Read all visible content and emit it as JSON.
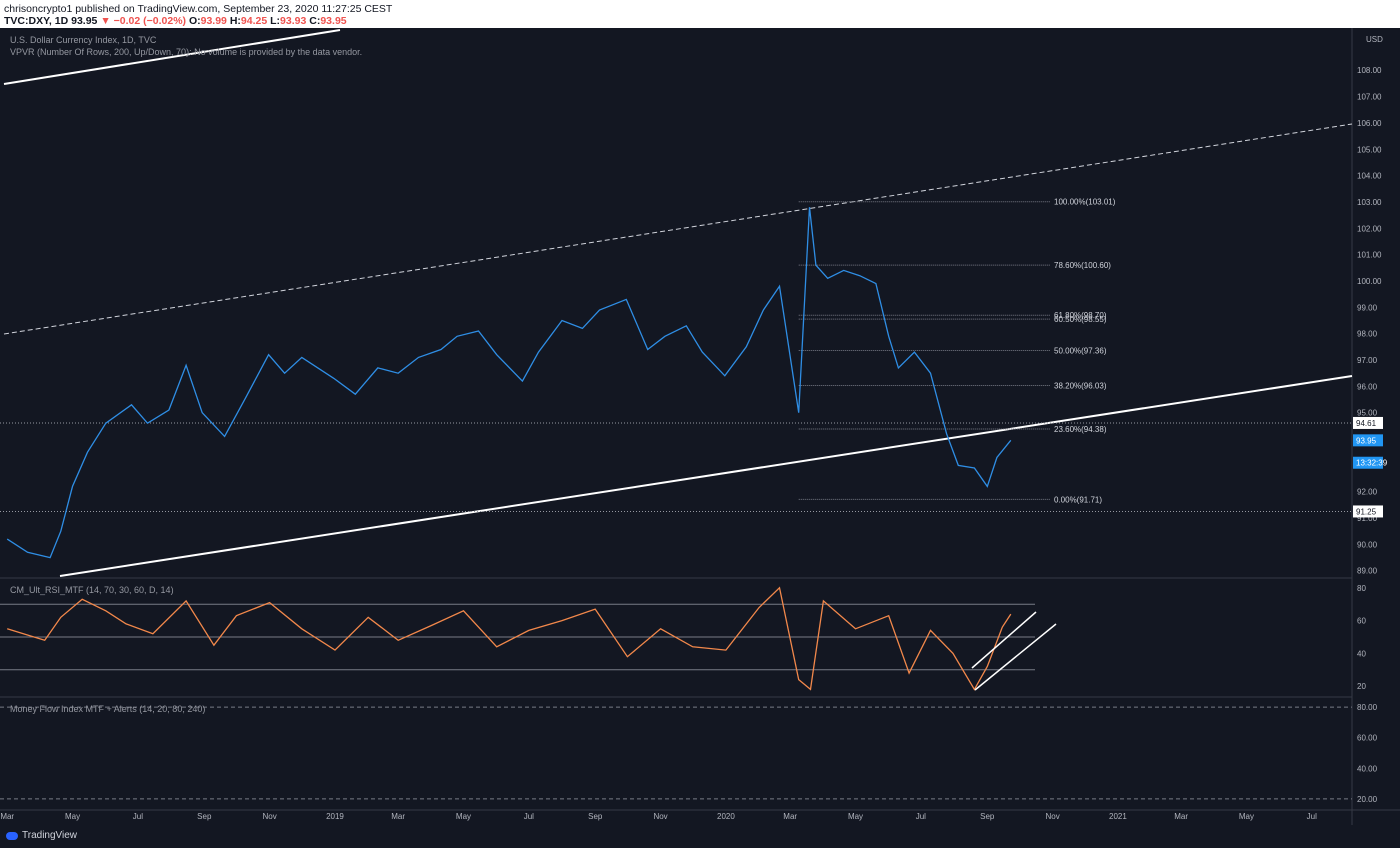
{
  "header": {
    "line1": "chrisoncrypto1 published on TradingView.com, September 23, 2020 11:27:25 CEST",
    "symbol": "TVC:DXY, 1D",
    "last": "93.95",
    "change": "−0.02 (−0.02%)",
    "o_label": "O:",
    "o": "93.99",
    "h_label": "H:",
    "h": "94.25",
    "l_label": "L:",
    "l": "93.93",
    "c_label": "C:",
    "c": "93.95"
  },
  "legend": {
    "title": "U.S. Dollar Currency Index, 1D, TVC",
    "vpvr": "VPVR (Number Of Rows, 200, Up/Down, 70): No volume is provided by the data vendor.",
    "rsi": "CM_Ult_RSI_MTF (14, 70, 30, 60, D, 14)",
    "mfi": "Money Flow Index MTF + Alerts (14, 20, 80, 240)"
  },
  "footer": {
    "brand": "TradingView"
  },
  "colors": {
    "background": "#131722",
    "price_line": "#2f8ee5",
    "rsi_line": "#f2884b",
    "trend_line": "#ffffff",
    "axis_text": "#b2b5be",
    "price_label_bg": "#2196f3"
  },
  "chart_data": [
    {
      "type": "line",
      "title": "U.S. Dollar Currency Index, 1D, TVC",
      "currency": "USD",
      "x_ticks": [
        "Mar",
        "May",
        "Jul",
        "Sep",
        "Nov",
        "2019",
        "Mar",
        "May",
        "Jul",
        "Sep",
        "Nov",
        "2020",
        "Mar",
        "May",
        "Jul",
        "Sep",
        "Nov",
        "2021",
        "Mar",
        "May",
        "Jul"
      ],
      "y_ticks": [
        "89.00",
        "90.00",
        "91.00",
        "92.00",
        "93.00",
        "94.00",
        "95.00",
        "96.00",
        "97.00",
        "98.00",
        "99.00",
        "100.00",
        "101.00",
        "102.00",
        "103.00",
        "104.00",
        "105.00",
        "106.00",
        "107.00",
        "108.00"
      ],
      "ylim": [
        88.8,
        109.3
      ],
      "series": [
        {
          "x": [
            "2018-03-01",
            "2018-03-20",
            "2018-04-10",
            "2018-04-20",
            "2018-05-01",
            "2018-05-15",
            "2018-06-01",
            "2018-06-25",
            "2018-07-10",
            "2018-07-30",
            "2018-08-15",
            "2018-08-30",
            "2018-09-20",
            "2018-10-10",
            "2018-10-31",
            "2018-11-15",
            "2018-12-01",
            "2018-12-31",
            "2019-01-20",
            "2019-02-10",
            "2019-03-01",
            "2019-03-20",
            "2019-04-10",
            "2019-04-25",
            "2019-05-15",
            "2019-06-01",
            "2019-06-25",
            "2019-07-10",
            "2019-08-01",
            "2019-08-20",
            "2019-09-05",
            "2019-09-30",
            "2019-10-20",
            "2019-11-05",
            "2019-11-25",
            "2019-12-10",
            "2019-12-31",
            "2020-01-20",
            "2020-02-05",
            "2020-02-20",
            "2020-03-09",
            "2020-03-19",
            "2020-03-25",
            "2020-04-05",
            "2020-04-20",
            "2020-05-05",
            "2020-05-20",
            "2020-06-01",
            "2020-06-10",
            "2020-06-25",
            "2020-07-10",
            "2020-07-25",
            "2020-08-05",
            "2020-08-20",
            "2020-09-01",
            "2020-09-10",
            "2020-09-23"
          ],
          "values": [
            90.2,
            89.7,
            89.5,
            90.5,
            92.2,
            93.5,
            94.6,
            95.3,
            94.6,
            95.1,
            96.8,
            95.0,
            94.1,
            95.6,
            97.2,
            96.5,
            97.1,
            96.3,
            95.7,
            96.7,
            96.5,
            97.1,
            97.4,
            97.9,
            98.1,
            97.2,
            96.2,
            97.3,
            98.5,
            98.2,
            98.9,
            99.3,
            97.4,
            97.9,
            98.3,
            97.3,
            96.4,
            97.5,
            98.9,
            99.8,
            95.0,
            102.8,
            100.6,
            100.1,
            100.4,
            100.2,
            99.9,
            97.9,
            96.7,
            97.3,
            96.5,
            94.2,
            93.0,
            92.9,
            92.2,
            93.3,
            93.95
          ]
        }
      ],
      "fibonacci": [
        {
          "label": "100.00%(103.01)",
          "value": 103.01
        },
        {
          "label": "78.60%(100.60)",
          "value": 100.6
        },
        {
          "label": "61.80%(98.70)",
          "value": 98.7
        },
        {
          "label": "60.50%(98.55)",
          "value": 98.55
        },
        {
          "label": "50.00%(97.36)",
          "value": 97.36
        },
        {
          "label": "38.20%(96.03)",
          "value": 96.03
        },
        {
          "label": "23.60%(94.38)",
          "value": 94.38
        },
        {
          "label": "0.00%(91.71)",
          "value": 91.71
        }
      ],
      "horizontal_lines": [
        94.61,
        91.25
      ],
      "price_labels": [
        {
          "text": "94.61",
          "value": 94.61
        },
        {
          "text": "93.95",
          "value": 93.95,
          "highlight": true
        },
        {
          "text": "13:32:39",
          "value": 93.1,
          "highlight": true
        },
        {
          "text": "91.25",
          "value": 91.25
        }
      ],
      "grid": false
    },
    {
      "type": "line",
      "title": "CM_Ult_RSI_MTF (14, 70, 30, 60, D, 14)",
      "y_ticks": [
        "20",
        "40",
        "60",
        "80"
      ],
      "ylim": [
        14,
        86
      ],
      "levels": [
        70,
        50,
        30
      ],
      "series": [
        {
          "x": [
            "2018-03-01",
            "2018-04-05",
            "2018-04-20",
            "2018-05-10",
            "2018-06-01",
            "2018-06-20",
            "2018-07-15",
            "2018-08-15",
            "2018-09-10",
            "2018-10-01",
            "2018-11-01",
            "2018-12-01",
            "2019-01-01",
            "2019-02-01",
            "2019-03-01",
            "2019-04-01",
            "2019-05-01",
            "2019-06-01",
            "2019-07-01",
            "2019-08-01",
            "2019-09-01",
            "2019-10-01",
            "2019-11-01",
            "2019-12-01",
            "2020-01-01",
            "2020-02-01",
            "2020-02-20",
            "2020-03-09",
            "2020-03-20",
            "2020-04-01",
            "2020-05-01",
            "2020-06-01",
            "2020-06-20",
            "2020-07-10",
            "2020-07-31",
            "2020-08-20",
            "2020-09-01",
            "2020-09-15",
            "2020-09-23"
          ],
          "values": [
            55,
            48,
            62,
            73,
            66,
            58,
            52,
            72,
            45,
            63,
            71,
            55,
            42,
            62,
            48,
            57,
            66,
            44,
            54,
            60,
            67,
            38,
            55,
            44,
            42,
            68,
            80,
            24,
            18,
            72,
            55,
            63,
            28,
            54,
            40,
            18,
            32,
            56,
            64
          ]
        }
      ],
      "grid": false
    },
    {
      "type": "line",
      "title": "Money Flow Index MTF + Alerts (14, 20, 80, 240)",
      "y_ticks": [
        "20.00",
        "40.00",
        "60.00",
        "80.00"
      ],
      "ylim": [
        14,
        86
      ],
      "levels": [
        80,
        20
      ],
      "series": []
    }
  ]
}
